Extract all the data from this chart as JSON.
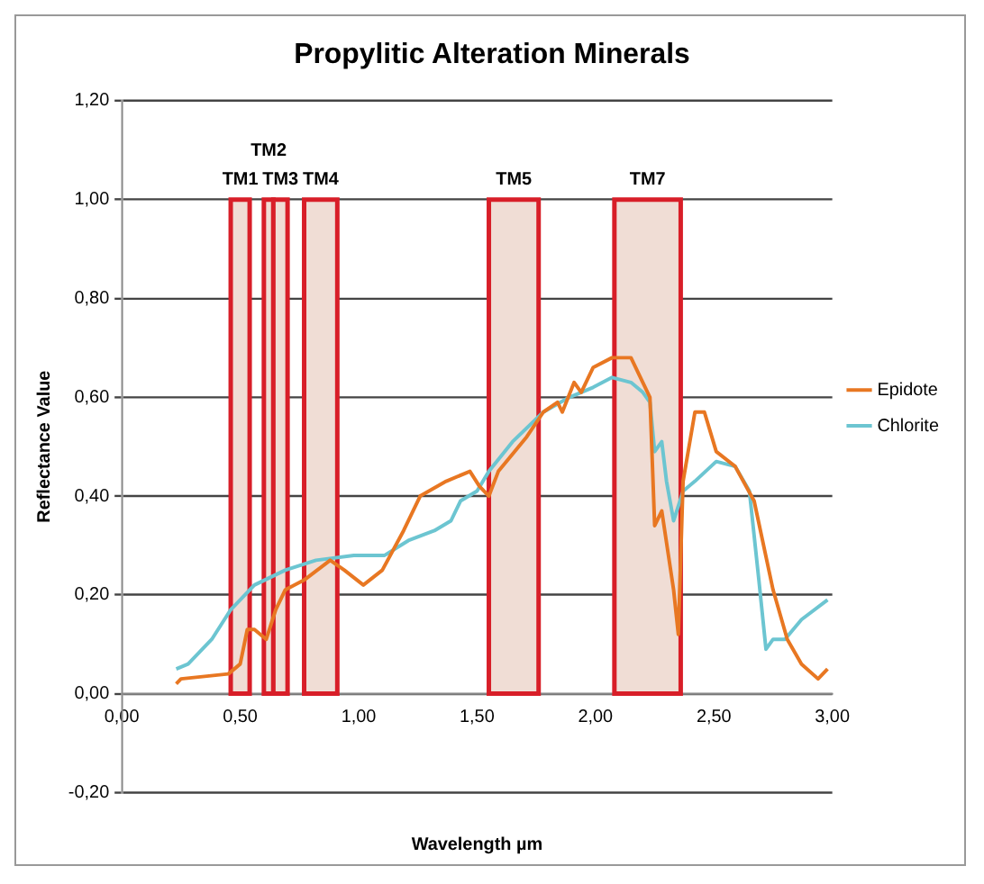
{
  "chart_data": {
    "type": "line",
    "title": "Propylitic Alteration Minerals",
    "xlabel": "Wavelength µm",
    "ylabel": "Reflectance Value",
    "xlim": [
      0,
      3
    ],
    "xticks": [
      {
        "value": 0,
        "label": "0,00"
      },
      {
        "value": 0.5,
        "label": "0,50"
      },
      {
        "value": 1,
        "label": "1,00"
      },
      {
        "value": 1.5,
        "label": "1,50"
      },
      {
        "value": 2,
        "label": "2,00"
      },
      {
        "value": 2.5,
        "label": "2,50"
      },
      {
        "value": 3,
        "label": "3,00"
      }
    ],
    "ylim": [
      -0.2,
      1.2
    ],
    "yticks": [
      {
        "value": -0.2,
        "label": "-0,20"
      },
      {
        "value": 0,
        "label": "0,00"
      },
      {
        "value": 0.2,
        "label": "0,20"
      },
      {
        "value": 0.4,
        "label": "0,40"
      },
      {
        "value": 0.6,
        "label": "0,60"
      },
      {
        "value": 0.8,
        "label": "0,80"
      },
      {
        "value": 1,
        "label": "1,00"
      },
      {
        "value": 1.2,
        "label": "1,20"
      }
    ],
    "grid": "y",
    "legend": "right",
    "marker": "none",
    "line_style": "solid",
    "bands": [
      {
        "axis": "x",
        "from": 0.46,
        "to": 0.54,
        "label": "TM1",
        "color": "#f0ddd5"
      },
      {
        "axis": "x",
        "from": 0.6,
        "to": 0.64,
        "label": "TM2",
        "color": "#f0ddd5"
      },
      {
        "axis": "x",
        "from": 0.64,
        "to": 0.7,
        "label": "TM3",
        "color": "#f0ddd5"
      },
      {
        "axis": "x",
        "from": 0.77,
        "to": 0.91,
        "label": "TM4",
        "color": "#f0ddd5"
      },
      {
        "axis": "x",
        "from": 1.55,
        "to": 1.76,
        "label": "TM5",
        "color": "#f0ddd5"
      },
      {
        "axis": "x",
        "from": 2.08,
        "to": 2.36,
        "label": "TM7",
        "color": "#f0ddd5"
      }
    ],
    "series": [
      {
        "name": "Epidote",
        "color": "#e87722",
        "x": [
          0.23,
          0.25,
          0.45,
          0.5,
          0.53,
          0.56,
          0.61,
          0.65,
          0.69,
          0.77,
          0.88,
          0.94,
          1.02,
          1.1,
          1.19,
          1.26,
          1.37,
          1.47,
          1.51,
          1.55,
          1.59,
          1.71,
          1.78,
          1.84,
          1.86,
          1.91,
          1.94,
          1.99,
          2.07,
          2.15,
          2.2,
          2.23,
          2.25,
          2.28,
          2.33,
          2.35,
          2.37,
          2.42,
          2.46,
          2.51,
          2.59,
          2.67,
          2.75,
          2.81,
          2.87,
          2.94,
          2.98
        ],
        "values": [
          0.02,
          0.03,
          0.04,
          0.06,
          0.13,
          0.13,
          0.11,
          0.17,
          0.21,
          0.23,
          0.27,
          0.25,
          0.22,
          0.25,
          0.33,
          0.4,
          0.43,
          0.45,
          0.42,
          0.4,
          0.45,
          0.52,
          0.57,
          0.59,
          0.57,
          0.63,
          0.61,
          0.66,
          0.68,
          0.68,
          0.63,
          0.6,
          0.34,
          0.37,
          0.21,
          0.12,
          0.43,
          0.57,
          0.57,
          0.49,
          0.46,
          0.39,
          0.21,
          0.11,
          0.06,
          0.03,
          0.05
        ]
      },
      {
        "name": "Chlorite",
        "color": "#6cc5d1",
        "x": [
          0.23,
          0.28,
          0.38,
          0.46,
          0.56,
          0.69,
          0.82,
          0.98,
          1.11,
          1.21,
          1.32,
          1.39,
          1.43,
          1.5,
          1.55,
          1.65,
          1.78,
          1.89,
          1.99,
          2.07,
          2.15,
          2.2,
          2.23,
          2.25,
          2.28,
          2.3,
          2.33,
          2.37,
          2.42,
          2.51,
          2.59,
          2.65,
          2.69,
          2.72,
          2.75,
          2.8,
          2.87,
          2.98
        ],
        "values": [
          0.05,
          0.06,
          0.11,
          0.17,
          0.22,
          0.25,
          0.27,
          0.28,
          0.28,
          0.31,
          0.33,
          0.35,
          0.39,
          0.41,
          0.45,
          0.51,
          0.57,
          0.6,
          0.62,
          0.64,
          0.63,
          0.61,
          0.59,
          0.49,
          0.51,
          0.43,
          0.35,
          0.41,
          0.43,
          0.47,
          0.46,
          0.41,
          0.23,
          0.09,
          0.11,
          0.11,
          0.15,
          0.19
        ]
      }
    ]
  }
}
